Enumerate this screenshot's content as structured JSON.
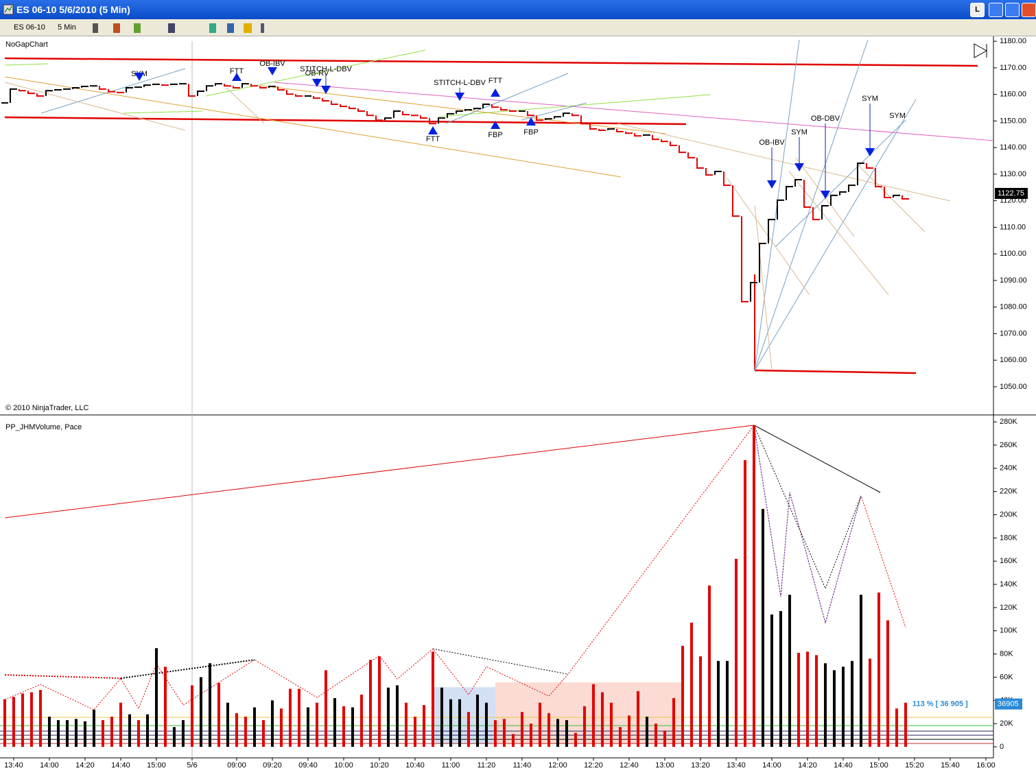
{
  "window": {
    "title": "ES 06-10  5/6/2010 (5 Min)",
    "instrument": "ES 06-10",
    "interval": "5 Min",
    "button": "L"
  },
  "chart_data": [
    {
      "type": "price",
      "title": "NoGapChart",
      "footer": "© 2010 NinjaTrader, LLC",
      "xlim": [
        -1.15,
        109.85
      ],
      "ylim": [
        1039.4,
        1182.1
      ],
      "yticks": [
        {
          "value": 1050,
          "label": "1050.00"
        },
        {
          "value": 1060,
          "label": "1060.00"
        },
        {
          "value": 1070,
          "label": "1070.00"
        },
        {
          "value": 1080,
          "label": "1080.00"
        },
        {
          "value": 1090,
          "label": "1090.00"
        },
        {
          "value": 1100,
          "label": "1100.00"
        },
        {
          "value": 1110,
          "label": "1110.00"
        },
        {
          "value": 1120,
          "label": "1120.00"
        },
        {
          "value": 1130,
          "label": "1130.00"
        },
        {
          "value": 1140,
          "label": "1140.00"
        },
        {
          "value": 1150,
          "label": "1150.00"
        },
        {
          "value": 1160,
          "label": "1160.00"
        },
        {
          "value": 1170,
          "label": "1170.00"
        },
        {
          "value": 1180,
          "label": "1180.00"
        }
      ],
      "values": [
        1156.8,
        1162,
        1161.4,
        1160.4,
        1159.4,
        1161.4,
        1161.7,
        1162,
        1162.5,
        1163,
        1163.2,
        1162,
        1161,
        1160.7,
        1162.5,
        1162.7,
        1163.5,
        1163.8,
        1163.5,
        1163.8,
        1164,
        1159.4,
        1161.2,
        1163.2,
        1164,
        1163.2,
        1162.5,
        1164,
        1163.2,
        1162.5,
        1163,
        1161.7,
        1160.1,
        1159.4,
        1159.4,
        1158.6,
        1157.6,
        1156.3,
        1155.5,
        1154.7,
        1153.7,
        1152.1,
        1150.3,
        1151.1,
        1153.7,
        1152.4,
        1152.1,
        1151.1,
        1149,
        1151.1,
        1152.7,
        1153.7,
        1154.2,
        1154.7,
        1156.3,
        1155.2,
        1154.2,
        1153.7,
        1153.7,
        1152.1,
        1150.3,
        1150.8,
        1151.6,
        1152.9,
        1152.1,
        1149,
        1147,
        1146.5,
        1147,
        1146,
        1145.4,
        1144.4,
        1144.7,
        1143.1,
        1142.3,
        1140.8,
        1138.2,
        1136.2,
        1132.3,
        1129.7,
        1131,
        1125.8,
        1114.2,
        1082,
        1089.2,
        1103.9,
        1112.9,
        1120.2,
        1125.3,
        1127.9,
        1117.6,
        1112.9,
        1118.1,
        1122,
        1123.3,
        1125.8,
        1134.1,
        1132.3,
        1125.3,
        1121.2,
        1122,
        1120.7
      ],
      "last_price": 1122.75,
      "annotations": [
        "SYM",
        "FTT",
        "OB-IBV",
        "STITCH-L-DBV",
        "OB-RV",
        "STITCH-L-DBV",
        "FTT",
        "FTT",
        "FBP",
        "FBP",
        "OB-IBV",
        "SYM",
        "OB-DBV",
        "SYM",
        "SYM"
      ]
    },
    {
      "type": "volume",
      "title": "PP_JHMVolume, Pace",
      "xlim": [
        -1.15,
        109.85
      ],
      "ylim": [
        -9500,
        286000
      ],
      "xticks": [
        {
          "value": 0,
          "label": "13:40"
        },
        {
          "value": 4,
          "label": "14:00"
        },
        {
          "value": 8,
          "label": "14:20"
        },
        {
          "value": 12,
          "label": "14:40"
        },
        {
          "value": 16,
          "label": "15:00"
        },
        {
          "value": 20,
          "label": "5/6"
        },
        {
          "value": 25,
          "label": "09:00"
        },
        {
          "value": 29,
          "label": "09:20"
        },
        {
          "value": 33,
          "label": "09:40"
        },
        {
          "value": 37,
          "label": "10:00"
        },
        {
          "value": 41,
          "label": "10:20"
        },
        {
          "value": 45,
          "label": "10:40"
        },
        {
          "value": 49,
          "label": "11:00"
        },
        {
          "value": 53,
          "label": "11:20"
        },
        {
          "value": 57,
          "label": "11:40"
        },
        {
          "value": 61,
          "label": "12:00"
        },
        {
          "value": 65,
          "label": "12:20"
        },
        {
          "value": 69,
          "label": "12:40"
        },
        {
          "value": 73,
          "label": "13:00"
        },
        {
          "value": 77,
          "label": "13:20"
        },
        {
          "value": 81,
          "label": "13:40"
        },
        {
          "value": 85,
          "label": "14:00"
        },
        {
          "value": 89,
          "label": "14:20"
        },
        {
          "value": 93,
          "label": "14:40"
        },
        {
          "value": 97,
          "label": "15:00"
        },
        {
          "value": 101,
          "label": "15:20"
        },
        {
          "value": 105,
          "label": "15:40"
        },
        {
          "value": 109,
          "label": "16:00"
        }
      ],
      "yticks": [
        0,
        {
          "value": 20000,
          "label": "20K"
        },
        {
          "value": 40000,
          "label": "40K"
        },
        {
          "value": 60000,
          "label": "60K"
        },
        {
          "value": 80000,
          "label": "80K"
        },
        {
          "value": 100000,
          "label": "100K"
        },
        {
          "value": 120000,
          "label": "120K"
        },
        {
          "value": 140000,
          "label": "140K"
        },
        {
          "value": 160000,
          "label": "160K"
        },
        {
          "value": 180000,
          "label": "180K"
        },
        {
          "value": 200000,
          "label": "200K"
        },
        {
          "value": 220000,
          "label": "220K"
        },
        {
          "value": 240000,
          "label": "240K"
        },
        {
          "value": 260000,
          "label": "260K"
        },
        {
          "value": 280000,
          "label": "280K"
        }
      ],
      "values": [
        41000,
        43000,
        46000,
        47000,
        49000,
        26000,
        23000,
        23000,
        24000,
        22000,
        32000,
        23000,
        26000,
        38000,
        28000,
        23000,
        28000,
        85000,
        69000,
        17000,
        23000,
        53000,
        60000,
        72000,
        55000,
        38000,
        29000,
        26000,
        34000,
        23000,
        40000,
        33000,
        50000,
        50000,
        34000,
        38000,
        66000,
        42000,
        35000,
        34000,
        45000,
        75000,
        78000,
        51000,
        53000,
        38000,
        26000,
        36000,
        82000,
        51000,
        41000,
        41000,
        30000,
        45000,
        38000,
        23000,
        24000,
        11000,
        30000,
        20000,
        38000,
        29000,
        24000,
        23000,
        12000,
        35000,
        54000,
        47000,
        38000,
        17000,
        27000,
        48000,
        26000,
        20000,
        14000,
        42000,
        87000,
        107000,
        78000,
        139000,
        74000,
        74000,
        162000,
        247000,
        277000,
        205000,
        114000,
        117000,
        131000,
        81000,
        82000,
        79000,
        72000,
        66000,
        69000,
        74000,
        131000,
        76000,
        133000,
        109000,
        33000,
        38000
      ],
      "colors": [
        "#e00000",
        "#e00000",
        "#e00000",
        "#e00000",
        "#e00000",
        "#000000",
        "#000000",
        "#000000",
        "#000000",
        "#000000",
        "#000000",
        "#e00000",
        "#e00000",
        "#e00000",
        "#000000",
        "#e00000",
        "#000000",
        "#000000",
        "#e00000",
        "#000000",
        "#000000",
        "#e00000",
        "#000000",
        "#000000",
        "#e00000",
        "#000000",
        "#e00000",
        "#e00000",
        "#000000",
        "#e00000",
        "#000000",
        "#e00000",
        "#e00000",
        "#e00000",
        "#000000",
        "#e00000",
        "#e00000",
        "#000000",
        "#e00000",
        "#000000",
        "#e00000",
        "#e00000",
        "#e00000",
        "#000000",
        "#000000",
        "#e00000",
        "#e00000",
        "#e00000",
        "#e00000",
        "#000000",
        "#000000",
        "#000000",
        "#e00000",
        "#000000",
        "#000000",
        "#e00000",
        "#e00000",
        "#e00000",
        "#e00000",
        "#e00000",
        "#e00000",
        "#e00000",
        "#000000",
        "#000000",
        "#e00000",
        "#e00000",
        "#e00000",
        "#e00000",
        "#e00000",
        "#e00000",
        "#e00000",
        "#e00000",
        "#000000",
        "#e00000",
        "#e00000",
        "#e00000",
        "#e00000",
        "#e00000",
        "#e00000",
        "#e00000",
        "#000000",
        "#000000",
        "#e00000",
        "#e00000",
        "#e00000",
        "#000000",
        "#000000",
        "#000000",
        "#000000",
        "#e00000",
        "#e00000",
        "#e00000",
        "#000000",
        "#000000",
        "#000000",
        "#000000",
        "#000000",
        "#e00000",
        "#e00000",
        "#e00000",
        "#e00000",
        "#e00000"
      ],
      "pace_label": "113 % [ 36 905 ]",
      "last_volume": 36905
    }
  ]
}
